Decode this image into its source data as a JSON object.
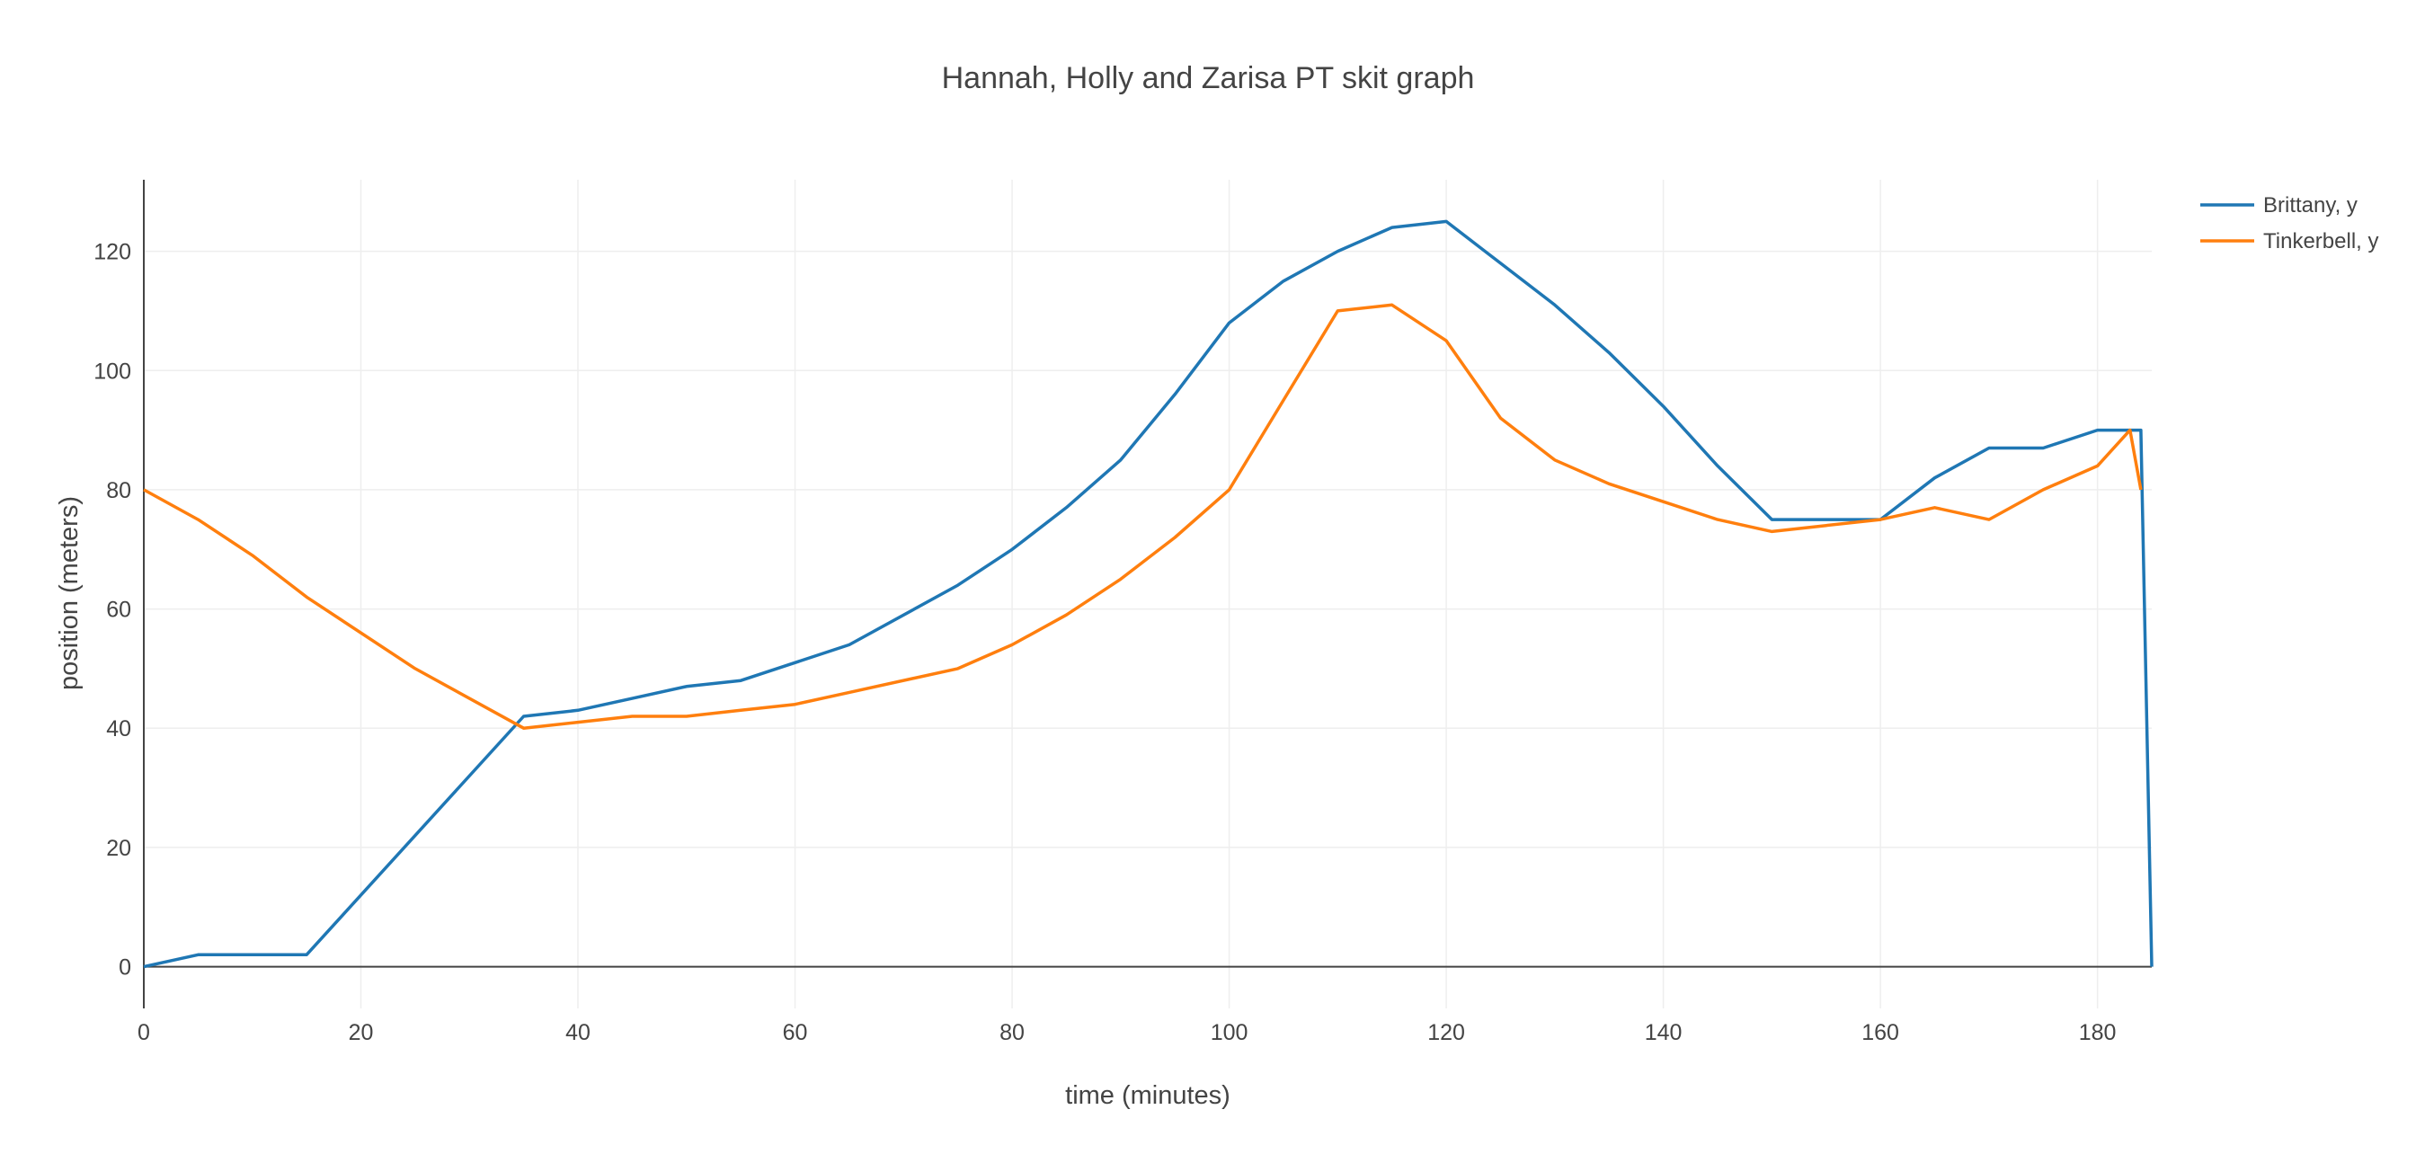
{
  "chart_data": {
    "type": "line",
    "title": "Hannah, Holly and Zarisa PT skit graph",
    "xlabel": "time (minutes)",
    "ylabel": "position (meters)",
    "xlim": [
      0,
      185
    ],
    "ylim": [
      -7,
      132
    ],
    "xticks": [
      0,
      20,
      40,
      60,
      80,
      100,
      120,
      140,
      160,
      180
    ],
    "yticks": [
      0,
      20,
      40,
      60,
      80,
      100,
      120
    ],
    "grid": true,
    "legend_position": "top-right",
    "series": [
      {
        "name": "Brittany, y",
        "color": "#1f77b4",
        "x": [
          0,
          5,
          10,
          15,
          35,
          40,
          45,
          50,
          55,
          60,
          65,
          75,
          80,
          85,
          90,
          95,
          100,
          105,
          110,
          115,
          120,
          125,
          130,
          135,
          140,
          145,
          150,
          155,
          160,
          165,
          170,
          175,
          180,
          183,
          184,
          185
        ],
        "y": [
          0,
          2,
          2,
          2,
          42,
          43,
          45,
          47,
          48,
          51,
          54,
          64,
          70,
          77,
          85,
          96,
          108,
          115,
          120,
          124,
          125,
          118,
          111,
          103,
          94,
          84,
          75,
          75,
          75,
          82,
          87,
          87,
          90,
          90,
          90,
          0
        ]
      },
      {
        "name": "Tinkerbell, y",
        "color": "#ff7f0e",
        "x": [
          0,
          5,
          10,
          15,
          25,
          35,
          40,
          45,
          50,
          55,
          60,
          65,
          75,
          80,
          85,
          90,
          95,
          100,
          105,
          110,
          115,
          120,
          125,
          130,
          135,
          140,
          145,
          150,
          155,
          160,
          165,
          170,
          175,
          180,
          183,
          184
        ],
        "y": [
          80,
          75,
          69,
          62,
          50,
          40,
          41,
          42,
          42,
          43,
          44,
          46,
          50,
          54,
          59,
          65,
          72,
          80,
          95,
          110,
          111,
          105,
          92,
          85,
          81,
          78,
          75,
          73,
          74,
          75,
          77,
          75,
          80,
          84,
          90,
          80
        ]
      }
    ]
  }
}
